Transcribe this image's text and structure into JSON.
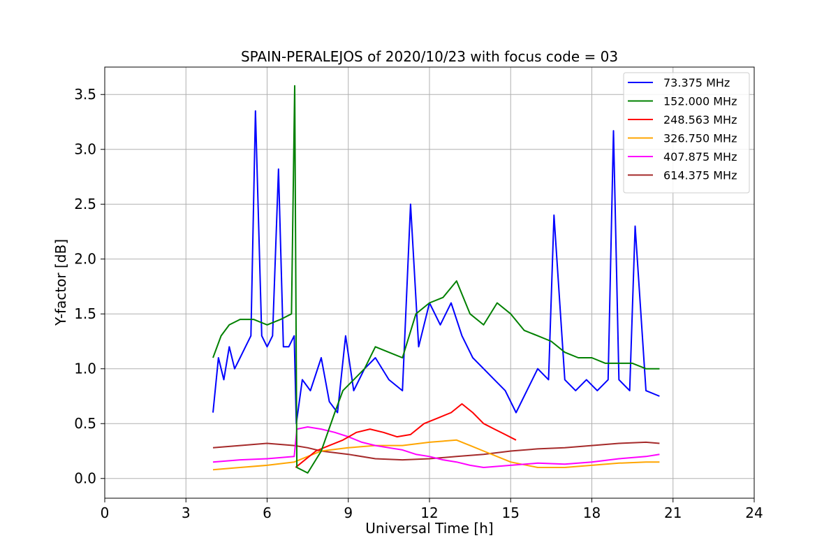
{
  "chart_data": {
    "type": "line",
    "title": "SPAIN-PERALEJOS of 2020/10/23 with focus code = 03",
    "xlabel": "Universal Time [h]",
    "ylabel": "Y-factor [dB]",
    "xlim": [
      0,
      24
    ],
    "ylim": [
      -0.18,
      3.75
    ],
    "xticks": [
      0,
      3,
      6,
      9,
      12,
      15,
      18,
      21,
      24
    ],
    "xtick_labels": [
      "0",
      "3",
      "6",
      "9",
      "12",
      "15",
      "18",
      "21",
      "24"
    ],
    "yticks": [
      0.0,
      0.5,
      1.0,
      1.5,
      2.0,
      2.5,
      3.0,
      3.5
    ],
    "ytick_labels": [
      "0.0",
      "0.5",
      "1.0",
      "1.5",
      "2.0",
      "2.5",
      "3.0",
      "3.5"
    ],
    "grid": true,
    "legend_position": "top-right",
    "series": [
      {
        "name": " 73.375 MHz",
        "color": "#0000ff",
        "x": [
          4.0,
          4.2,
          4.4,
          4.6,
          4.8,
          5.0,
          5.2,
          5.4,
          5.57,
          5.8,
          6.0,
          6.2,
          6.42,
          6.6,
          6.8,
          7.0,
          7.08,
          7.3,
          7.6,
          8.0,
          8.3,
          8.6,
          8.9,
          9.2,
          9.6,
          10.0,
          10.5,
          11.0,
          11.3,
          11.6,
          12.0,
          12.4,
          12.8,
          13.2,
          13.6,
          14.0,
          14.4,
          14.8,
          15.2,
          15.6,
          16.0,
          16.4,
          16.6,
          17.0,
          17.4,
          17.8,
          18.2,
          18.6,
          18.8,
          19.0,
          19.4,
          19.6,
          20.0,
          20.5
        ],
        "y": [
          0.6,
          1.1,
          0.9,
          1.2,
          1.0,
          1.1,
          1.2,
          1.3,
          3.35,
          1.3,
          1.2,
          1.3,
          2.82,
          1.2,
          1.2,
          1.3,
          0.5,
          0.9,
          0.8,
          1.1,
          0.7,
          0.6,
          1.3,
          0.8,
          1.0,
          1.1,
          0.9,
          0.8,
          2.5,
          1.2,
          1.6,
          1.4,
          1.6,
          1.3,
          1.1,
          1.0,
          0.9,
          0.8,
          0.6,
          0.8,
          1.0,
          0.9,
          2.4,
          0.9,
          0.8,
          0.9,
          0.8,
          0.9,
          3.17,
          0.9,
          0.8,
          2.3,
          0.8,
          0.75
        ]
      },
      {
        "name": "152.000 MHz",
        "color": "#008000",
        "x": [
          4.0,
          4.3,
          4.6,
          5.0,
          5.5,
          6.0,
          6.5,
          6.9,
          7.02,
          7.1,
          7.5,
          8.0,
          8.5,
          8.8,
          9.2,
          9.6,
          10.0,
          10.5,
          11.0,
          11.5,
          12.0,
          12.5,
          13.0,
          13.5,
          14.0,
          14.5,
          15.0,
          15.5,
          16.0,
          16.5,
          17.0,
          17.5,
          18.0,
          18.5,
          19.0,
          19.5,
          20.0,
          20.5
        ],
        "y": [
          1.1,
          1.3,
          1.4,
          1.45,
          1.45,
          1.4,
          1.45,
          1.5,
          3.58,
          0.1,
          0.05,
          0.25,
          0.6,
          0.8,
          0.9,
          1.0,
          1.2,
          1.15,
          1.1,
          1.5,
          1.6,
          1.65,
          1.8,
          1.5,
          1.4,
          1.6,
          1.5,
          1.35,
          1.3,
          1.25,
          1.15,
          1.1,
          1.1,
          1.05,
          1.05,
          1.05,
          1.0,
          1.0
        ]
      },
      {
        "name": "248.563 MHz",
        "color": "#ff0000",
        "x": [
          7.05,
          7.3,
          7.8,
          8.3,
          8.8,
          9.3,
          9.8,
          10.3,
          10.8,
          11.3,
          11.8,
          12.3,
          12.8,
          13.2,
          13.6,
          14.0,
          14.4,
          14.8,
          15.2
        ],
        "y": [
          0.1,
          0.15,
          0.25,
          0.3,
          0.35,
          0.42,
          0.45,
          0.42,
          0.38,
          0.4,
          0.5,
          0.55,
          0.6,
          0.68,
          0.6,
          0.5,
          0.45,
          0.4,
          0.35
        ]
      },
      {
        "name": "326.750 MHz",
        "color": "#ffa500",
        "x": [
          4.0,
          5.0,
          6.0,
          7.0,
          7.5,
          8.0,
          9.0,
          10.0,
          11.0,
          12.0,
          13.0,
          13.5,
          14.0,
          15.0,
          16.0,
          17.0,
          18.0,
          19.0,
          20.0,
          20.5
        ],
        "y": [
          0.08,
          0.1,
          0.12,
          0.15,
          0.2,
          0.25,
          0.28,
          0.3,
          0.3,
          0.33,
          0.35,
          0.3,
          0.25,
          0.15,
          0.1,
          0.1,
          0.12,
          0.14,
          0.15,
          0.15
        ]
      },
      {
        "name": "407.875 MHz",
        "color": "#ff00ff",
        "x": [
          4.0,
          5.0,
          6.0,
          7.0,
          7.1,
          7.5,
          8.0,
          8.5,
          9.0,
          9.5,
          10.0,
          10.5,
          11.0,
          11.5,
          12.0,
          12.5,
          13.0,
          13.5,
          14.0,
          15.0,
          16.0,
          17.0,
          18.0,
          19.0,
          20.0,
          20.5
        ],
        "y": [
          0.15,
          0.17,
          0.18,
          0.2,
          0.45,
          0.47,
          0.45,
          0.42,
          0.38,
          0.33,
          0.3,
          0.28,
          0.26,
          0.22,
          0.2,
          0.17,
          0.15,
          0.12,
          0.1,
          0.12,
          0.14,
          0.13,
          0.15,
          0.18,
          0.2,
          0.22
        ]
      },
      {
        "name": "614.375 MHz",
        "color": "#a52a2a",
        "x": [
          4.0,
          5.0,
          6.0,
          7.0,
          7.5,
          8.0,
          9.0,
          10.0,
          11.0,
          12.0,
          13.0,
          14.0,
          15.0,
          16.0,
          17.0,
          18.0,
          19.0,
          20.0,
          20.5
        ],
        "y": [
          0.28,
          0.3,
          0.32,
          0.3,
          0.28,
          0.25,
          0.22,
          0.18,
          0.17,
          0.18,
          0.2,
          0.22,
          0.25,
          0.27,
          0.28,
          0.3,
          0.32,
          0.33,
          0.32
        ]
      }
    ]
  }
}
